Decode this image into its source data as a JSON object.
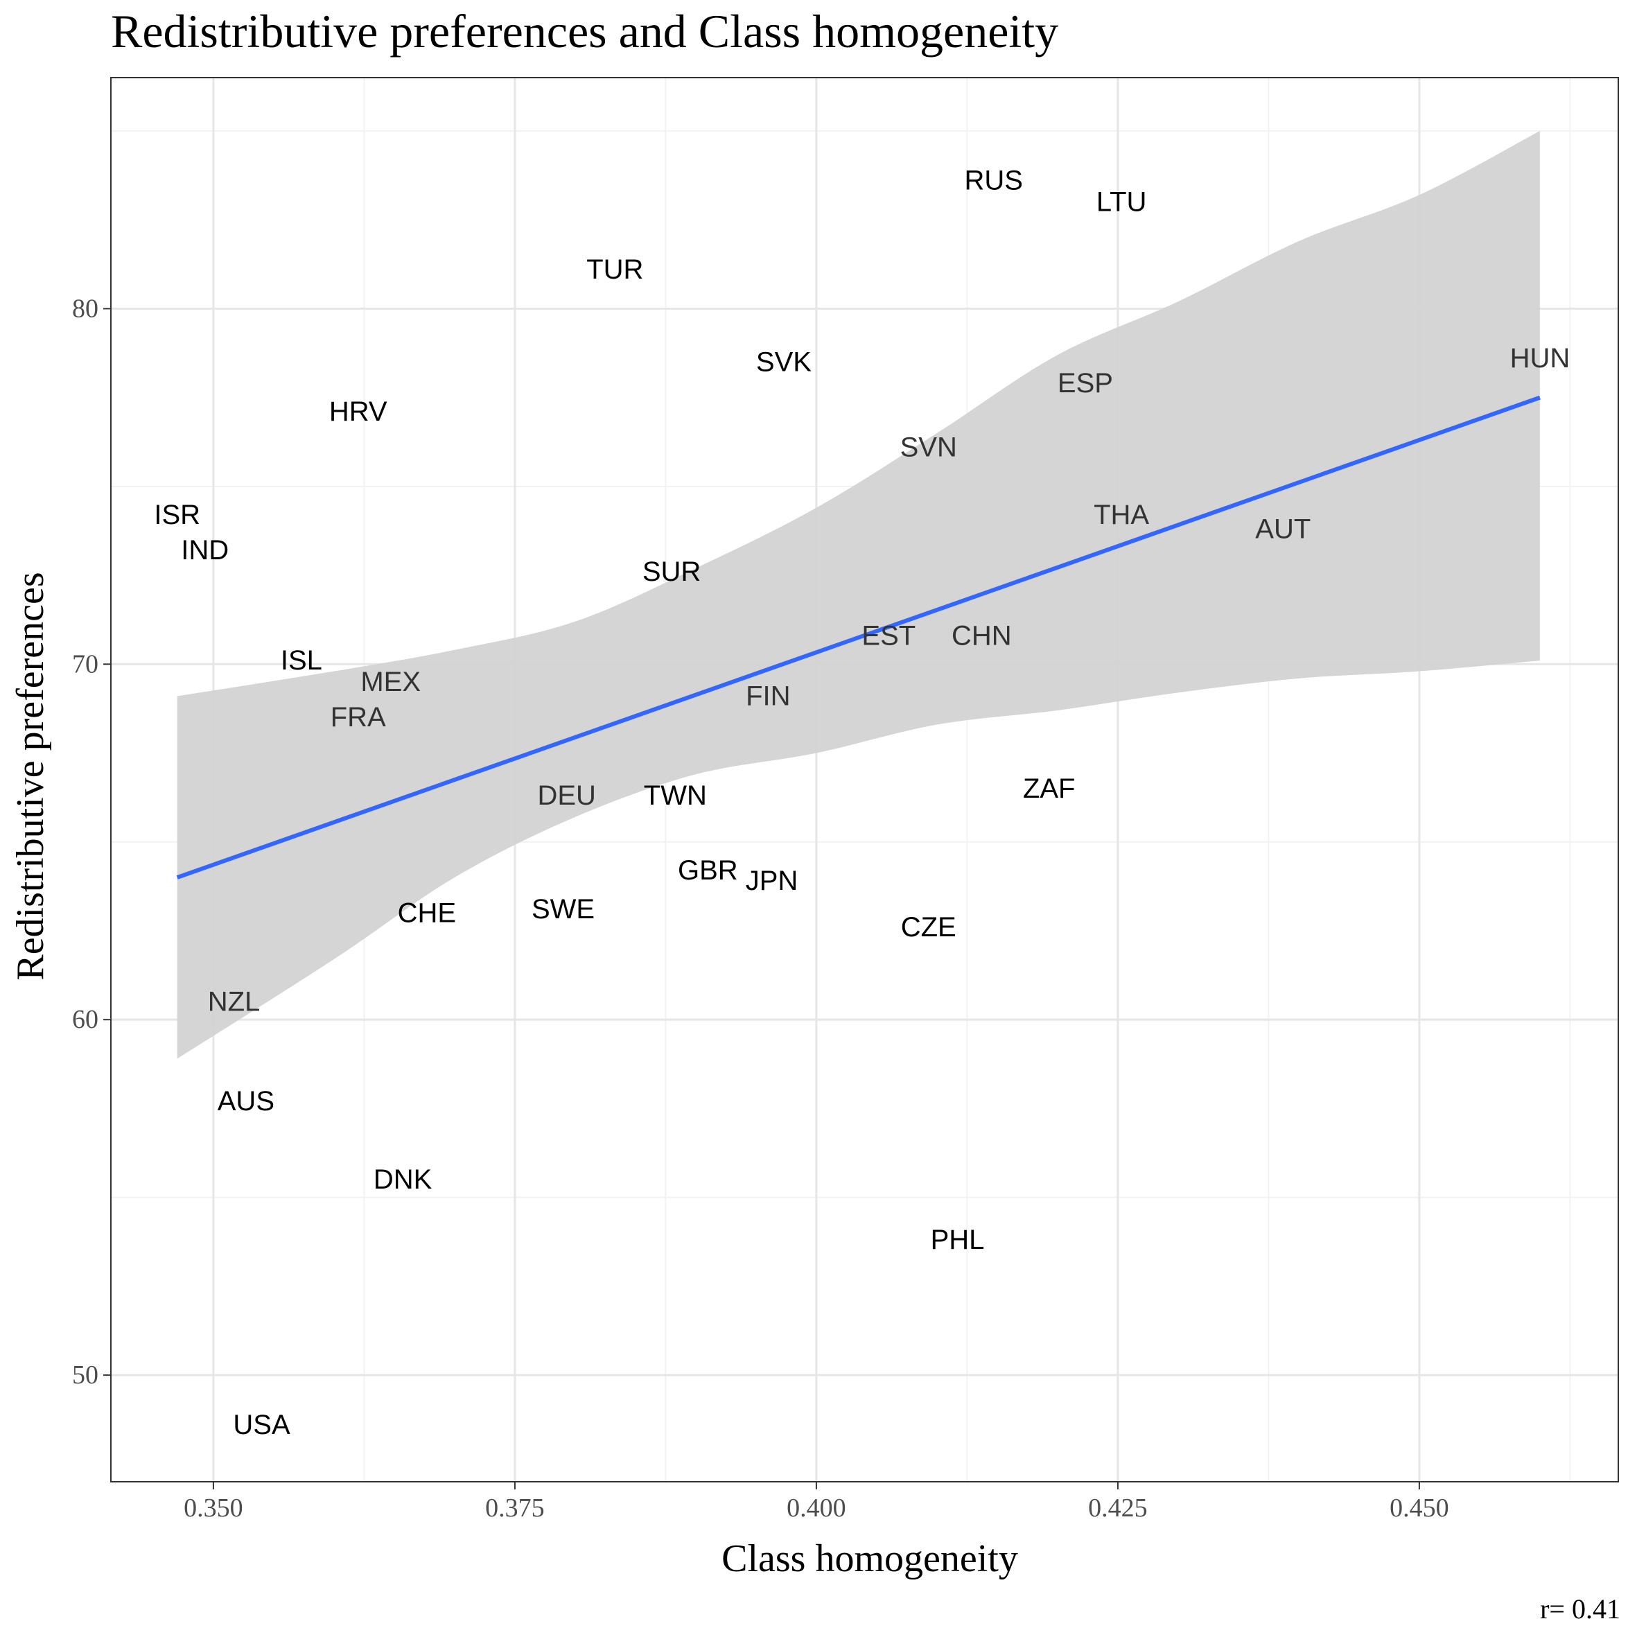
{
  "chart_data": {
    "type": "scatter",
    "title": "Redistributive preferences and Class homogeneity",
    "xlabel": "Class homogeneity",
    "ylabel": "Redistributive preferences",
    "caption": "r= 0.41",
    "xlim": [
      0.3415,
      0.4665
    ],
    "ylim": [
      47.0,
      86.5
    ],
    "x_ticks": [
      0.35,
      0.375,
      0.4,
      0.425,
      0.45
    ],
    "x_tick_labels": [
      "0.350",
      "0.375",
      "0.400",
      "0.425",
      "0.450"
    ],
    "y_ticks": [
      50,
      60,
      70,
      80
    ],
    "y_tick_labels": [
      "50",
      "60",
      "70",
      "80"
    ],
    "grid": true,
    "points": [
      {
        "label": "RUS",
        "x": 0.4147,
        "y": 83.6
      },
      {
        "label": "LTU",
        "x": 0.4253,
        "y": 83.0
      },
      {
        "label": "TUR",
        "x": 0.3833,
        "y": 81.1
      },
      {
        "label": "SVK",
        "x": 0.3973,
        "y": 78.5
      },
      {
        "label": "HUN",
        "x": 0.46,
        "y": 78.6
      },
      {
        "label": "ESP",
        "x": 0.4223,
        "y": 77.9
      },
      {
        "label": "HRV",
        "x": 0.362,
        "y": 77.1
      },
      {
        "label": "SVN",
        "x": 0.4093,
        "y": 76.1
      },
      {
        "label": "THA",
        "x": 0.4253,
        "y": 74.2
      },
      {
        "label": "ISR",
        "x": 0.347,
        "y": 74.2
      },
      {
        "label": "AUT",
        "x": 0.4387,
        "y": 73.8
      },
      {
        "label": "IND",
        "x": 0.3493,
        "y": 73.2
      },
      {
        "label": "SUR",
        "x": 0.388,
        "y": 72.6
      },
      {
        "label": "EST",
        "x": 0.406,
        "y": 70.8
      },
      {
        "label": "CHN",
        "x": 0.4137,
        "y": 70.8
      },
      {
        "label": "ISL",
        "x": 0.3573,
        "y": 70.1
      },
      {
        "label": "MEX",
        "x": 0.3647,
        "y": 69.5
      },
      {
        "label": "FRA",
        "x": 0.362,
        "y": 68.5
      },
      {
        "label": "FIN",
        "x": 0.396,
        "y": 69.1
      },
      {
        "label": "ZAF",
        "x": 0.4193,
        "y": 66.5
      },
      {
        "label": "DEU",
        "x": 0.3793,
        "y": 66.3
      },
      {
        "label": "TWN",
        "x": 0.3883,
        "y": 66.3
      },
      {
        "label": "GBR",
        "x": 0.391,
        "y": 64.2
      },
      {
        "label": "JPN",
        "x": 0.3963,
        "y": 63.9
      },
      {
        "label": "CHE",
        "x": 0.3677,
        "y": 63.0
      },
      {
        "label": "SWE",
        "x": 0.379,
        "y": 63.1
      },
      {
        "label": "CZE",
        "x": 0.4093,
        "y": 62.6
      },
      {
        "label": "NZL",
        "x": 0.3517,
        "y": 60.5
      },
      {
        "label": "AUS",
        "x": 0.3527,
        "y": 57.7
      },
      {
        "label": "DNK",
        "x": 0.3657,
        "y": 55.5
      },
      {
        "label": "PHL",
        "x": 0.4117,
        "y": 53.8
      },
      {
        "label": "USA",
        "x": 0.354,
        "y": 48.6
      }
    ],
    "fit": {
      "method": "linear",
      "color": "#3366FF",
      "ci_fill": "#d3d3d3",
      "line": [
        [
          0.347,
          64.0
        ],
        [
          0.46,
          77.5
        ]
      ],
      "ci_upper": [
        [
          0.347,
          69.1
        ],
        [
          0.36,
          69.8
        ],
        [
          0.37,
          70.4
        ],
        [
          0.38,
          71.2
        ],
        [
          0.39,
          72.7
        ],
        [
          0.4,
          74.4
        ],
        [
          0.41,
          76.5
        ],
        [
          0.42,
          78.7
        ],
        [
          0.43,
          80.2
        ],
        [
          0.44,
          81.9
        ],
        [
          0.45,
          83.2
        ],
        [
          0.46,
          85.0
        ]
      ],
      "ci_lower": [
        [
          0.347,
          58.9
        ],
        [
          0.36,
          61.7
        ],
        [
          0.37,
          64.0
        ],
        [
          0.38,
          65.7
        ],
        [
          0.39,
          66.9
        ],
        [
          0.4,
          67.5
        ],
        [
          0.41,
          68.3
        ],
        [
          0.42,
          68.7
        ],
        [
          0.43,
          69.2
        ],
        [
          0.44,
          69.6
        ],
        [
          0.45,
          69.8
        ],
        [
          0.46,
          70.1
        ]
      ]
    },
    "label_colors": {
      "default": "#000000",
      "inside_band": "#333333"
    }
  }
}
